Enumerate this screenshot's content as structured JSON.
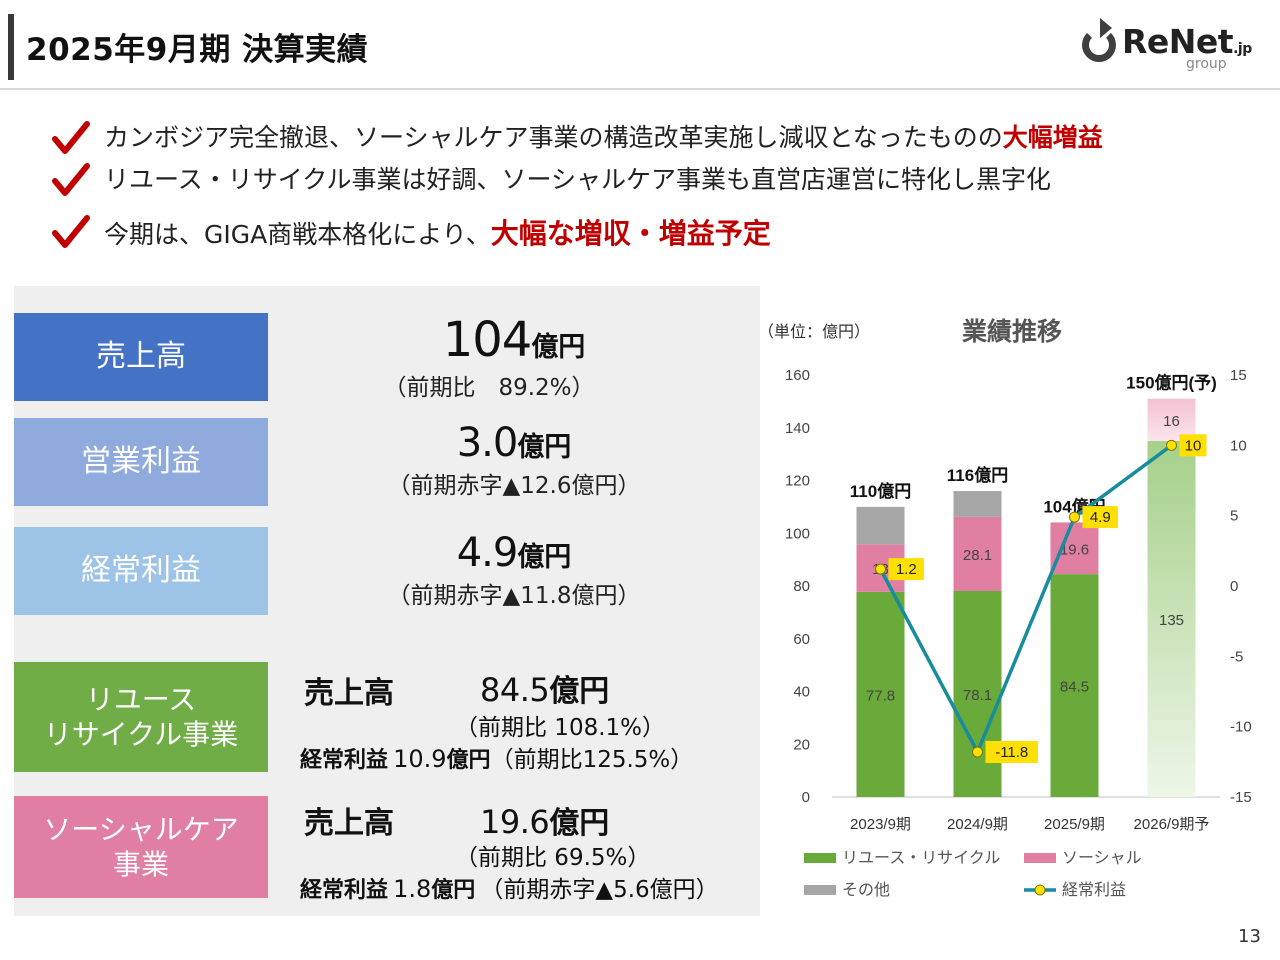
{
  "header": {
    "title": "2025年9月期 決算実績",
    "logo_main": "ReNet",
    "logo_suffix": ".jp",
    "logo_sub": "group"
  },
  "bullets": [
    {
      "text": "カンボジア完全撤退、ソーシャルケア事業の構造改革実施し減収となったものの",
      "highlight": "大幅増益"
    },
    {
      "text": "リユース・リサイクル事業は好調、ソーシャルケア事業も直営店運営に特化し黒字化",
      "highlight": ""
    },
    {
      "text": "今期は、GIGA商戦本格化により、",
      "highlight": "大幅な増収・増益予定"
    }
  ],
  "kpis": {
    "sales": {
      "label": "売上高",
      "value": "104",
      "unit": "億円",
      "sub": "（前期比　89.2%）"
    },
    "operating": {
      "label": "営業利益",
      "value": "3.0",
      "unit": "億円",
      "sub": "（前期赤字▲12.6億円）"
    },
    "ordinary": {
      "label": "経常利益",
      "value": "4.9",
      "unit": "億円",
      "sub": "（前期赤字▲11.8億円）"
    }
  },
  "segments": {
    "reuse": {
      "label_line1": "リユース",
      "label_line2": "リサイクル事業",
      "sales_label": "売上高",
      "sales_value": "84.5",
      "sales_unit": "億円",
      "sales_sub": "（前期比 108.1%）",
      "profit_label": "経常利益",
      "profit_value": "10.9",
      "profit_unit": "億円",
      "profit_sub": "（前期比125.5%）"
    },
    "social": {
      "label_line1": "ソーシャルケア",
      "label_line2": "事業",
      "sales_label": "売上高",
      "sales_value": "19.6",
      "sales_unit": "億円",
      "sales_sub": "（前期比 69.5%）",
      "profit_label": "経常利益",
      "profit_value": "1.8",
      "profit_unit": "億円",
      "profit_sub": "（前期赤字▲5.6億円）"
    }
  },
  "chart_unit": "（単位：億円）",
  "chart_title": "業績推移",
  "page_number": "13",
  "colors": {
    "reuse": "#6aaa3a",
    "social": "#e17fa3",
    "other": "#a6a6a6",
    "line": "#168c9c",
    "marker": "#ffe000",
    "accent_red": "#c00000"
  },
  "chart_data": {
    "type": "bar",
    "stacked": true,
    "categories": [
      "2023/9期",
      "2024/9期",
      "2025/9期",
      "2026/9期予"
    ],
    "series": [
      {
        "name": "リユース・リサイクル",
        "values": [
          77.8,
          78.1,
          84.5,
          135
        ],
        "labels": [
          "77.8",
          "78.1",
          "84.5",
          "135"
        ]
      },
      {
        "name": "ソーシャル",
        "values": [
          18,
          28.1,
          19.6,
          16
        ],
        "labels": [
          "18",
          "28.1",
          "19.6",
          "16"
        ]
      },
      {
        "name": "その他",
        "values": [
          14.2,
          9.8,
          0,
          0
        ]
      }
    ],
    "line_series": {
      "name": "経常利益",
      "values": [
        1.2,
        -11.8,
        4.9,
        10
      ],
      "labels": [
        "1.2",
        "-11.8",
        "4.9",
        "10"
      ],
      "axis": "right"
    },
    "totals": [
      "110億円",
      "116億円",
      "104億円",
      "150億円(予)"
    ],
    "ylim": [
      0,
      160
    ],
    "y_ticks": [
      0,
      20,
      40,
      60,
      80,
      100,
      120,
      140,
      160
    ],
    "y2lim": [
      -15,
      15
    ],
    "y2_ticks": [
      -15,
      -10,
      -5,
      0,
      5,
      10,
      15
    ],
    "legend_placement": "bottom",
    "grid": false
  }
}
